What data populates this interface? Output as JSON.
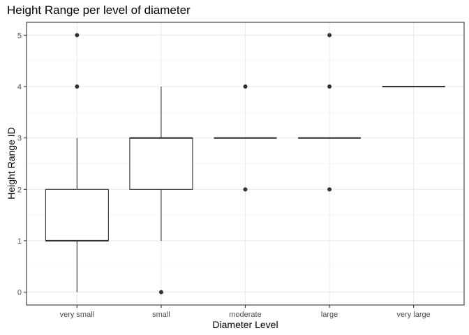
{
  "chart_data": {
    "type": "box",
    "title": "Height Range per level of diameter",
    "xlabel": "Diameter Level",
    "ylabel": "Height Range ID",
    "ylim": [
      -0.25,
      5.25
    ],
    "y_ticks": [
      0,
      1,
      2,
      3,
      4,
      5
    ],
    "grid": true,
    "categories": [
      "very small",
      "small",
      "moderate",
      "large",
      "very large"
    ],
    "boxes": [
      {
        "category": "very small",
        "min": 0,
        "q1": 1,
        "median": 1,
        "q3": 2,
        "max": 3,
        "outliers": [
          4,
          5
        ]
      },
      {
        "category": "small",
        "min": 1,
        "q1": 2,
        "median": 3,
        "q3": 3,
        "max": 4,
        "outliers": [
          0
        ]
      },
      {
        "category": "moderate",
        "min": 3,
        "q1": 3,
        "median": 3,
        "q3": 3,
        "max": 3,
        "outliers": [
          2,
          4
        ]
      },
      {
        "category": "large",
        "min": 3,
        "q1": 3,
        "median": 3,
        "q3": 3,
        "max": 3,
        "outliers": [
          2,
          4,
          5
        ]
      },
      {
        "category": "very large",
        "min": 4,
        "q1": 4,
        "median": 4,
        "q3": 4,
        "max": 4,
        "outliers": []
      }
    ],
    "colors": {
      "box_fill": "#ffffff",
      "line": "#333333",
      "grid_major": "#ebebeb",
      "grid_minor": "#f5f5f5",
      "panel_border": "#333333"
    }
  }
}
